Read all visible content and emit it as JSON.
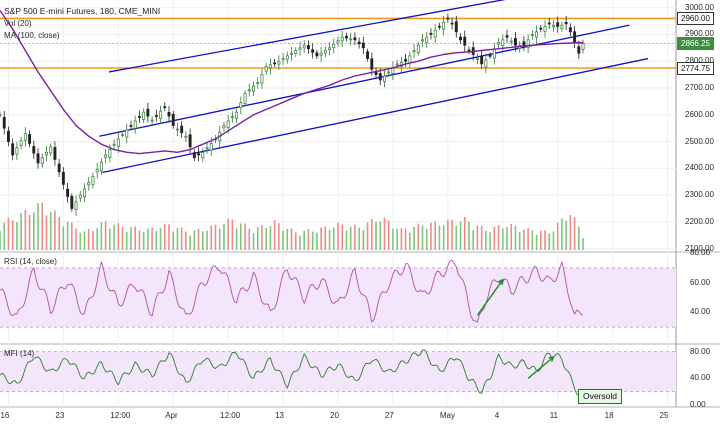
{
  "chart_data": {
    "type": "candlestick",
    "title": "S&P 500 E-mini Futures, 180, CME_MINI",
    "panels": {
      "price": {
        "legend": [
          "Vol (20)",
          "MA (100, close)"
        ],
        "y_ticks": [
          2100,
          2200,
          2300,
          2400,
          2500,
          2600,
          2700,
          2800,
          2900,
          3000
        ],
        "y_tick_labels": [
          "2100.00",
          "2200.00",
          "2300.00",
          "2400.00",
          "2500.00",
          "2600.00",
          "2700.00",
          "2800.00",
          "2900.00",
          "3000.00"
        ],
        "ylim": [
          2095,
          3010
        ],
        "horizontal_levels": [
          {
            "value": 2960.0,
            "label": "2960.00",
            "color": "#f39a1f"
          },
          {
            "value": 2774.75,
            "label": "2774.75",
            "color": "#f39a1f"
          }
        ],
        "current_price": {
          "value": 2866.25,
          "label": "2866.25",
          "color": "#3c8f3c"
        },
        "ma_color": "#7b1fa2",
        "trendline_color": "#1010c8",
        "up_color": "#2e7d32",
        "down_color": "#222222"
      },
      "rsi": {
        "label": "RSI (14, close)",
        "y_ticks": [
          40,
          60,
          80
        ],
        "y_tick_labels": [
          "40.00",
          "60.00",
          "80.00"
        ],
        "band": [
          30,
          70
        ],
        "ylim": [
          20,
          80
        ],
        "color": "#b050b0"
      },
      "mfi": {
        "label": "MFI (14)",
        "y_ticks": [
          0,
          40,
          80
        ],
        "y_tick_labels": [
          "0.00",
          "40.00",
          "80.00"
        ],
        "band": [
          20,
          80
        ],
        "ylim": [
          0,
          90
        ],
        "color": "#2e7d32",
        "annotation": "Oversold"
      }
    },
    "x_tick_labels": [
      "16",
      "23",
      "12:00",
      "Apr",
      "12:00",
      "13",
      "20",
      "27",
      "May",
      "4",
      "11",
      "18",
      "25"
    ],
    "price_path": [
      [
        0,
        2600
      ],
      [
        3,
        2450
      ],
      [
        6,
        2530
      ],
      [
        9,
        2420
      ],
      [
        12,
        2480
      ],
      [
        15,
        2340
      ],
      [
        17,
        2250
      ],
      [
        19,
        2300
      ],
      [
        22,
        2370
      ],
      [
        25,
        2450
      ],
      [
        28,
        2510
      ],
      [
        31,
        2560
      ],
      [
        34,
        2610
      ],
      [
        36,
        2580
      ],
      [
        39,
        2630
      ],
      [
        41,
        2560
      ],
      [
        44,
        2520
      ],
      [
        46,
        2440
      ],
      [
        48,
        2460
      ],
      [
        51,
        2510
      ],
      [
        53,
        2560
      ],
      [
        56,
        2610
      ],
      [
        58,
        2680
      ],
      [
        61,
        2720
      ],
      [
        63,
        2780
      ],
      [
        66,
        2800
      ],
      [
        69,
        2830
      ],
      [
        72,
        2860
      ],
      [
        75,
        2820
      ],
      [
        78,
        2850
      ],
      [
        81,
        2890
      ],
      [
        84,
        2880
      ],
      [
        86,
        2850
      ],
      [
        88,
        2770
      ],
      [
        90,
        2730
      ],
      [
        92,
        2760
      ],
      [
        94,
        2790
      ],
      [
        96,
        2800
      ],
      [
        98,
        2840
      ],
      [
        100,
        2880
      ],
      [
        102,
        2900
      ],
      [
        104,
        2930
      ],
      [
        106,
        2960
      ],
      [
        107,
        2940
      ],
      [
        109,
        2880
      ],
      [
        111,
        2840
      ],
      [
        113,
        2810
      ],
      [
        114,
        2790
      ],
      [
        116,
        2820
      ],
      [
        118,
        2870
      ],
      [
        120,
        2890
      ],
      [
        122,
        2860
      ],
      [
        124,
        2860
      ],
      [
        126,
        2900
      ],
      [
        128,
        2920
      ],
      [
        130,
        2940
      ],
      [
        132,
        2930
      ],
      [
        134,
        2940
      ],
      [
        135,
        2910
      ],
      [
        136,
        2870
      ],
      [
        137,
        2830
      ],
      [
        138,
        2866
      ]
    ],
    "ma_path": [
      [
        0,
        2990
      ],
      [
        3,
        2920
      ],
      [
        6,
        2840
      ],
      [
        9,
        2760
      ],
      [
        12,
        2690
      ],
      [
        15,
        2620
      ],
      [
        18,
        2560
      ],
      [
        21,
        2520
      ],
      [
        24,
        2490
      ],
      [
        27,
        2470
      ],
      [
        30,
        2460
      ],
      [
        33,
        2455
      ],
      [
        36,
        2460
      ],
      [
        39,
        2465
      ],
      [
        42,
        2460
      ],
      [
        45,
        2470
      ],
      [
        48,
        2490
      ],
      [
        51,
        2510
      ],
      [
        54,
        2540
      ],
      [
        57,
        2570
      ],
      [
        60,
        2600
      ],
      [
        63,
        2620
      ],
      [
        66,
        2640
      ],
      [
        69,
        2660
      ],
      [
        72,
        2680
      ],
      [
        75,
        2695
      ],
      [
        78,
        2710
      ],
      [
        81,
        2730
      ],
      [
        84,
        2745
      ],
      [
        87,
        2755
      ],
      [
        90,
        2765
      ],
      [
        93,
        2775
      ],
      [
        96,
        2790
      ],
      [
        99,
        2800
      ],
      [
        102,
        2815
      ],
      [
        105,
        2825
      ],
      [
        108,
        2832
      ],
      [
        111,
        2835
      ],
      [
        114,
        2840
      ],
      [
        117,
        2845
      ],
      [
        120,
        2850
      ],
      [
        123,
        2855
      ],
      [
        126,
        2860
      ],
      [
        129,
        2863
      ],
      [
        132,
        2866
      ],
      [
        135,
        2868
      ],
      [
        138,
        2870
      ]
    ],
    "trendlines": [
      {
        "from": [
          25.8,
          2760
        ],
        "to": [
          122.8,
          3040
        ]
      },
      {
        "from": [
          23.5,
          2520
        ],
        "to": [
          149,
          2935
        ]
      },
      {
        "from": [
          24.3,
          2385
        ],
        "to": [
          153.4,
          2810
        ]
      }
    ],
    "volume_path": [
      [
        0,
        0.5
      ],
      [
        5,
        0.7
      ],
      [
        10,
        0.9
      ],
      [
        15,
        0.6
      ],
      [
        20,
        0.35
      ],
      [
        25,
        0.55
      ],
      [
        30,
        0.45
      ],
      [
        35,
        0.4
      ],
      [
        40,
        0.5
      ],
      [
        45,
        0.35
      ],
      [
        50,
        0.45
      ],
      [
        55,
        0.6
      ],
      [
        60,
        0.4
      ],
      [
        65,
        0.55
      ],
      [
        70,
        0.35
      ],
      [
        75,
        0.4
      ],
      [
        80,
        0.5
      ],
      [
        85,
        0.45
      ],
      [
        90,
        0.65
      ],
      [
        95,
        0.4
      ],
      [
        100,
        0.5
      ],
      [
        105,
        0.55
      ],
      [
        110,
        0.6
      ],
      [
        115,
        0.4
      ],
      [
        120,
        0.5
      ],
      [
        125,
        0.4
      ],
      [
        130,
        0.35
      ],
      [
        135,
        0.75
      ],
      [
        138,
        0.3
      ]
    ],
    "rsi_path": [
      [
        0,
        55
      ],
      [
        4,
        35
      ],
      [
        8,
        68
      ],
      [
        12,
        42
      ],
      [
        16,
        62
      ],
      [
        20,
        38
      ],
      [
        24,
        70
      ],
      [
        28,
        45
      ],
      [
        32,
        60
      ],
      [
        36,
        40
      ],
      [
        40,
        66
      ],
      [
        44,
        35
      ],
      [
        48,
        60
      ],
      [
        52,
        72
      ],
      [
        56,
        48
      ],
      [
        60,
        64
      ],
      [
        64,
        38
      ],
      [
        68,
        70
      ],
      [
        72,
        50
      ],
      [
        76,
        62
      ],
      [
        80,
        44
      ],
      [
        84,
        67
      ],
      [
        88,
        36
      ],
      [
        92,
        60
      ],
      [
        96,
        72
      ],
      [
        100,
        50
      ],
      [
        104,
        66
      ],
      [
        108,
        74
      ],
      [
        111,
        45
      ],
      [
        113,
        30
      ],
      [
        115,
        50
      ],
      [
        118,
        64
      ],
      [
        121,
        55
      ],
      [
        124,
        62
      ],
      [
        127,
        68
      ],
      [
        130,
        60
      ],
      [
        133,
        70
      ],
      [
        135,
        50
      ],
      [
        136,
        36
      ],
      [
        138,
        42
      ]
    ],
    "mfi_path": [
      [
        0,
        45
      ],
      [
        4,
        30
      ],
      [
        8,
        75
      ],
      [
        12,
        48
      ],
      [
        16,
        70
      ],
      [
        20,
        40
      ],
      [
        24,
        62
      ],
      [
        28,
        35
      ],
      [
        32,
        60
      ],
      [
        36,
        45
      ],
      [
        40,
        78
      ],
      [
        44,
        32
      ],
      [
        48,
        70
      ],
      [
        52,
        55
      ],
      [
        56,
        80
      ],
      [
        60,
        40
      ],
      [
        64,
        68
      ],
      [
        68,
        30
      ],
      [
        72,
        72
      ],
      [
        76,
        45
      ],
      [
        80,
        60
      ],
      [
        84,
        35
      ],
      [
        88,
        70
      ],
      [
        92,
        48
      ],
      [
        96,
        66
      ],
      [
        100,
        82
      ],
      [
        104,
        50
      ],
      [
        108,
        74
      ],
      [
        111,
        40
      ],
      [
        114,
        20
      ],
      [
        116,
        42
      ],
      [
        118,
        72
      ],
      [
        121,
        58
      ],
      [
        124,
        64
      ],
      [
        127,
        50
      ],
      [
        130,
        78
      ],
      [
        133,
        70
      ],
      [
        135,
        40
      ],
      [
        137,
        15
      ],
      [
        138,
        18
      ]
    ],
    "arrows": [
      {
        "panel": "rsi",
        "from": [
          113,
          38
        ],
        "to": [
          119,
          62
        ]
      },
      {
        "panel": "mfi",
        "from": [
          125,
          40
        ],
        "to": [
          131,
          72
        ]
      }
    ]
  }
}
